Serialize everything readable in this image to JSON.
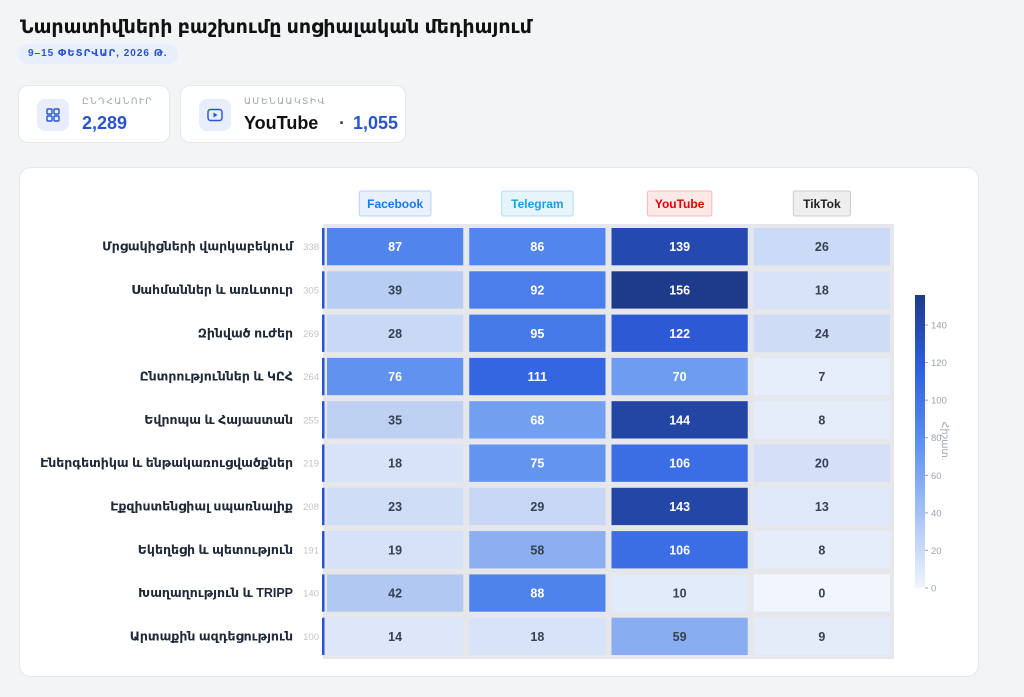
{
  "header": {
    "title": "Նարատիվների բաշխումը սոցիալական մեդիայում",
    "date_range": "9–15 ՓԵՏՐՎԱՐ, 2026 Թ."
  },
  "stats": {
    "total": {
      "label": "ԸՆԴՀԱՆՈՒՐ",
      "value": "2,289",
      "icon": "grid-icon"
    },
    "most_active": {
      "label": "ԱՄԵՆԱԱԿՏԻՎ",
      "platform": "YouTube",
      "separator": "·",
      "value": "1,055",
      "icon": "play-icon"
    }
  },
  "colors": {
    "accent": "#2754d3",
    "heat_low": "#f1f5fd",
    "heat_high": "#1e3a8a",
    "facebook": "#1877f2",
    "telegram": "#229ed9",
    "youtube": "#ff0000",
    "tiktok": "#111111"
  },
  "chart_data": {
    "type": "heatmap",
    "columns": [
      {
        "name": "Facebook",
        "color": "#1877f2",
        "bg": "#e8f0fe",
        "border": "#b9d0f7"
      },
      {
        "name": "Telegram",
        "color": "#229ed9",
        "bg": "#e6f4fb",
        "border": "#b7ddf0"
      },
      {
        "name": "YouTube",
        "color": "#e00000",
        "bg": "#fde8e8",
        "border": "#f5b8b8"
      },
      {
        "name": "TikTok",
        "color": "#222222",
        "bg": "#eeeeee",
        "border": "#cccccc"
      }
    ],
    "rows": [
      {
        "label": "Մրցակիցների վարկաբեկում",
        "total": 338,
        "values": [
          87,
          86,
          139,
          26
        ]
      },
      {
        "label": "Սահմաններ և առևտուր",
        "total": 305,
        "values": [
          39,
          92,
          156,
          18
        ]
      },
      {
        "label": "Զինված ուժեր",
        "total": 269,
        "values": [
          28,
          95,
          122,
          24
        ]
      },
      {
        "label": "Ընտրություններ և ԿԸՀ",
        "total": 264,
        "values": [
          76,
          111,
          70,
          7
        ]
      },
      {
        "label": "Եվրոպա և Հայաստան",
        "total": 255,
        "values": [
          35,
          68,
          144,
          8
        ]
      },
      {
        "label": "Էներգետիկա և ենթակառուցվածքներ",
        "total": 219,
        "values": [
          18,
          75,
          106,
          20
        ]
      },
      {
        "label": "Էքզիստենցիալ սպառնալիք",
        "total": 208,
        "values": [
          23,
          29,
          143,
          13
        ]
      },
      {
        "label": "Եկեղեցի և պետություն",
        "total": 191,
        "values": [
          19,
          58,
          106,
          8
        ]
      },
      {
        "label": "Խաղաղություն և TRIPP",
        "total": 140,
        "values": [
          42,
          88,
          10,
          0
        ]
      },
      {
        "label": "Արտաքին ազդեցություն",
        "total": 100,
        "values": [
          14,
          18,
          59,
          9
        ]
      }
    ],
    "colorbar": {
      "label": "Հիշատ.",
      "ticks": [
        0,
        20,
        40,
        60,
        80,
        100,
        120,
        140
      ],
      "range": [
        0,
        156
      ]
    }
  }
}
